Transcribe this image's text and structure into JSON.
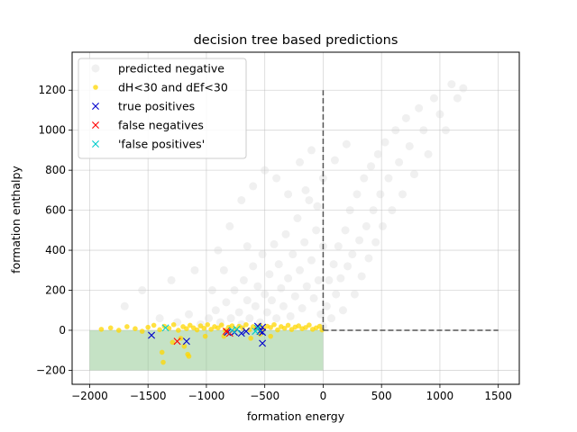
{
  "chart_data": {
    "type": "scatter",
    "title": "decision tree based predictions",
    "xlabel": "formation energy",
    "ylabel": "formation enthalpy",
    "xlim": [
      -2150,
      1680
    ],
    "ylim": [
      -270,
      1390
    ],
    "xticks": [
      -2000,
      -1500,
      -1000,
      -500,
      0,
      500,
      1000,
      1500
    ],
    "yticks": [
      -200,
      0,
      200,
      400,
      600,
      800,
      1000,
      1200
    ],
    "grid": true,
    "legend_position": "top-left",
    "legend": [
      {
        "label": "predicted negative",
        "marker": "circle",
        "color": "#d3d3d3"
      },
      {
        "label": "dH<30 and dEf<30",
        "marker": "dot",
        "color": "#ffd700"
      },
      {
        "label": "true positives",
        "marker": "x",
        "color": "#0000cc"
      },
      {
        "label": "false negatives",
        "marker": "x",
        "color": "#ff0000"
      },
      {
        "label": "'false positives'",
        "marker": "x",
        "color": "#00cccc"
      }
    ],
    "shaded_region": {
      "x": [
        -2000,
        0
      ],
      "y": [
        -200,
        0
      ],
      "color": "#8bc58b"
    },
    "reference_lines": [
      {
        "orientation": "vertical",
        "x": 0,
        "y_range": [
          0,
          1200
        ]
      },
      {
        "orientation": "horizontal",
        "y": 0,
        "x_range": [
          0,
          1500
        ]
      }
    ],
    "series": [
      {
        "name": "predicted negative",
        "points": [
          [
            -1400,
            60
          ],
          [
            -1250,
            40
          ],
          [
            -1150,
            80
          ],
          [
            -1050,
            30
          ],
          [
            -980,
            60
          ],
          [
            -920,
            100
          ],
          [
            -880,
            40
          ],
          [
            -830,
            140
          ],
          [
            -790,
            60
          ],
          [
            -760,
            200
          ],
          [
            -720,
            90
          ],
          [
            -700,
            30
          ],
          [
            -680,
            250
          ],
          [
            -650,
            150
          ],
          [
            -630,
            60
          ],
          [
            -600,
            320
          ],
          [
            -580,
            120
          ],
          [
            -560,
            220
          ],
          [
            -540,
            40
          ],
          [
            -520,
            380
          ],
          [
            -500,
            180
          ],
          [
            -480,
            90
          ],
          [
            -460,
            280
          ],
          [
            -440,
            150
          ],
          [
            -420,
            430
          ],
          [
            -400,
            60
          ],
          [
            -380,
            330
          ],
          [
            -360,
            210
          ],
          [
            -340,
            120
          ],
          [
            -320,
            480
          ],
          [
            -300,
            260
          ],
          [
            -280,
            70
          ],
          [
            -260,
            380
          ],
          [
            -240,
            170
          ],
          [
            -220,
            560
          ],
          [
            -200,
            300
          ],
          [
            -180,
            110
          ],
          [
            -160,
            440
          ],
          [
            -140,
            220
          ],
          [
            -120,
            650
          ],
          [
            -100,
            350
          ],
          [
            -80,
            160
          ],
          [
            -60,
            500
          ],
          [
            -40,
            250
          ],
          [
            -20,
            80
          ],
          [
            0,
            420
          ],
          [
            0,
            20
          ],
          [
            30,
            120
          ],
          [
            50,
            250
          ],
          [
            70,
            60
          ],
          [
            90,
            330
          ],
          [
            110,
            180
          ],
          [
            130,
            420
          ],
          [
            150,
            260
          ],
          [
            170,
            100
          ],
          [
            190,
            500
          ],
          [
            210,
            320
          ],
          [
            230,
            600
          ],
          [
            250,
            380
          ],
          [
            270,
            180
          ],
          [
            290,
            680
          ],
          [
            310,
            450
          ],
          [
            330,
            270
          ],
          [
            350,
            760
          ],
          [
            370,
            520
          ],
          [
            390,
            360
          ],
          [
            410,
            820
          ],
          [
            430,
            600
          ],
          [
            450,
            440
          ],
          [
            470,
            880
          ],
          [
            490,
            680
          ],
          [
            510,
            520
          ],
          [
            530,
            940
          ],
          [
            560,
            760
          ],
          [
            590,
            600
          ],
          [
            620,
            1000
          ],
          [
            650,
            840
          ],
          [
            680,
            680
          ],
          [
            710,
            1060
          ],
          [
            740,
            920
          ],
          [
            780,
            780
          ],
          [
            820,
            1110
          ],
          [
            860,
            1000
          ],
          [
            900,
            880
          ],
          [
            950,
            1160
          ],
          [
            1000,
            1080
          ],
          [
            1050,
            1000
          ],
          [
            1100,
            1230
          ],
          [
            1150,
            1160
          ],
          [
            1200,
            1210
          ],
          [
            -1700,
            120
          ],
          [
            -1550,
            200
          ],
          [
            -1300,
            250
          ],
          [
            -1100,
            300
          ],
          [
            -900,
            400
          ],
          [
            -800,
            520
          ],
          [
            -700,
            650
          ],
          [
            -600,
            720
          ],
          [
            -500,
            800
          ],
          [
            -400,
            760
          ],
          [
            -300,
            680
          ],
          [
            -200,
            840
          ],
          [
            -150,
            700
          ],
          [
            -100,
            900
          ],
          [
            -50,
            620
          ],
          [
            0,
            760
          ],
          [
            100,
            850
          ],
          [
            200,
            930
          ],
          [
            -650,
            420
          ],
          [
            -850,
            300
          ],
          [
            -950,
            200
          ]
        ]
      },
      {
        "name": "dH<30 and dEf<30",
        "points": [
          [
            -1900,
            5
          ],
          [
            -1820,
            12
          ],
          [
            -1750,
            0
          ],
          [
            -1680,
            18
          ],
          [
            -1610,
            8
          ],
          [
            -1550,
            -5
          ],
          [
            -1500,
            15
          ],
          [
            -1450,
            25
          ],
          [
            -1400,
            3
          ],
          [
            -1360,
            20
          ],
          [
            -1320,
            10
          ],
          [
            -1280,
            28
          ],
          [
            -1240,
            0
          ],
          [
            -1200,
            18
          ],
          [
            -1170,
            8
          ],
          [
            -1140,
            25
          ],
          [
            -1110,
            12
          ],
          [
            -1080,
            2
          ],
          [
            -1050,
            22
          ],
          [
            -1020,
            10
          ],
          [
            -990,
            28
          ],
          [
            -960,
            5
          ],
          [
            -930,
            18
          ],
          [
            -900,
            12
          ],
          [
            -870,
            26
          ],
          [
            -840,
            0
          ],
          [
            -810,
            15
          ],
          [
            -780,
            22
          ],
          [
            -750,
            6
          ],
          [
            -720,
            20
          ],
          [
            -690,
            12
          ],
          [
            -660,
            28
          ],
          [
            -630,
            3
          ],
          [
            -600,
            18
          ],
          [
            -570,
            10
          ],
          [
            -540,
            24
          ],
          [
            -510,
            6
          ],
          [
            -480,
            20
          ],
          [
            -450,
            14
          ],
          [
            -420,
            28
          ],
          [
            -390,
            2
          ],
          [
            -360,
            18
          ],
          [
            -330,
            10
          ],
          [
            -300,
            25
          ],
          [
            -270,
            4
          ],
          [
            -240,
            16
          ],
          [
            -210,
            22
          ],
          [
            -180,
            8
          ],
          [
            -150,
            14
          ],
          [
            -120,
            26
          ],
          [
            -90,
            5
          ],
          [
            -60,
            12
          ],
          [
            -30,
            20
          ],
          [
            -10,
            2
          ],
          [
            -1220,
            -40
          ],
          [
            -1190,
            -80
          ],
          [
            -1160,
            -120
          ],
          [
            -1150,
            -130
          ],
          [
            -1380,
            -110
          ],
          [
            -1370,
            -160
          ],
          [
            -1290,
            -60
          ],
          [
            -1010,
            -30
          ],
          [
            -850,
            -30
          ],
          [
            -620,
            -40
          ],
          [
            -540,
            -20
          ],
          [
            -450,
            -30
          ]
        ]
      },
      {
        "name": "true positives",
        "points": [
          [
            -1470,
            -25
          ],
          [
            -1170,
            -55
          ],
          [
            -820,
            -10
          ],
          [
            -760,
            -10
          ],
          [
            -700,
            -15
          ],
          [
            -660,
            -5
          ],
          [
            -560,
            20
          ],
          [
            -540,
            -5
          ],
          [
            -520,
            15
          ],
          [
            -520,
            -10
          ],
          [
            -520,
            -65
          ]
        ]
      },
      {
        "name": "false negatives",
        "points": [
          [
            -1250,
            -55
          ],
          [
            -830,
            -5
          ],
          [
            -800,
            -15
          ]
        ]
      },
      {
        "name": "'false positives'",
        "points": [
          [
            -1350,
            12
          ],
          [
            -780,
            0
          ],
          [
            -740,
            5
          ],
          [
            -580,
            -5
          ],
          [
            -560,
            10
          ]
        ]
      }
    ]
  }
}
